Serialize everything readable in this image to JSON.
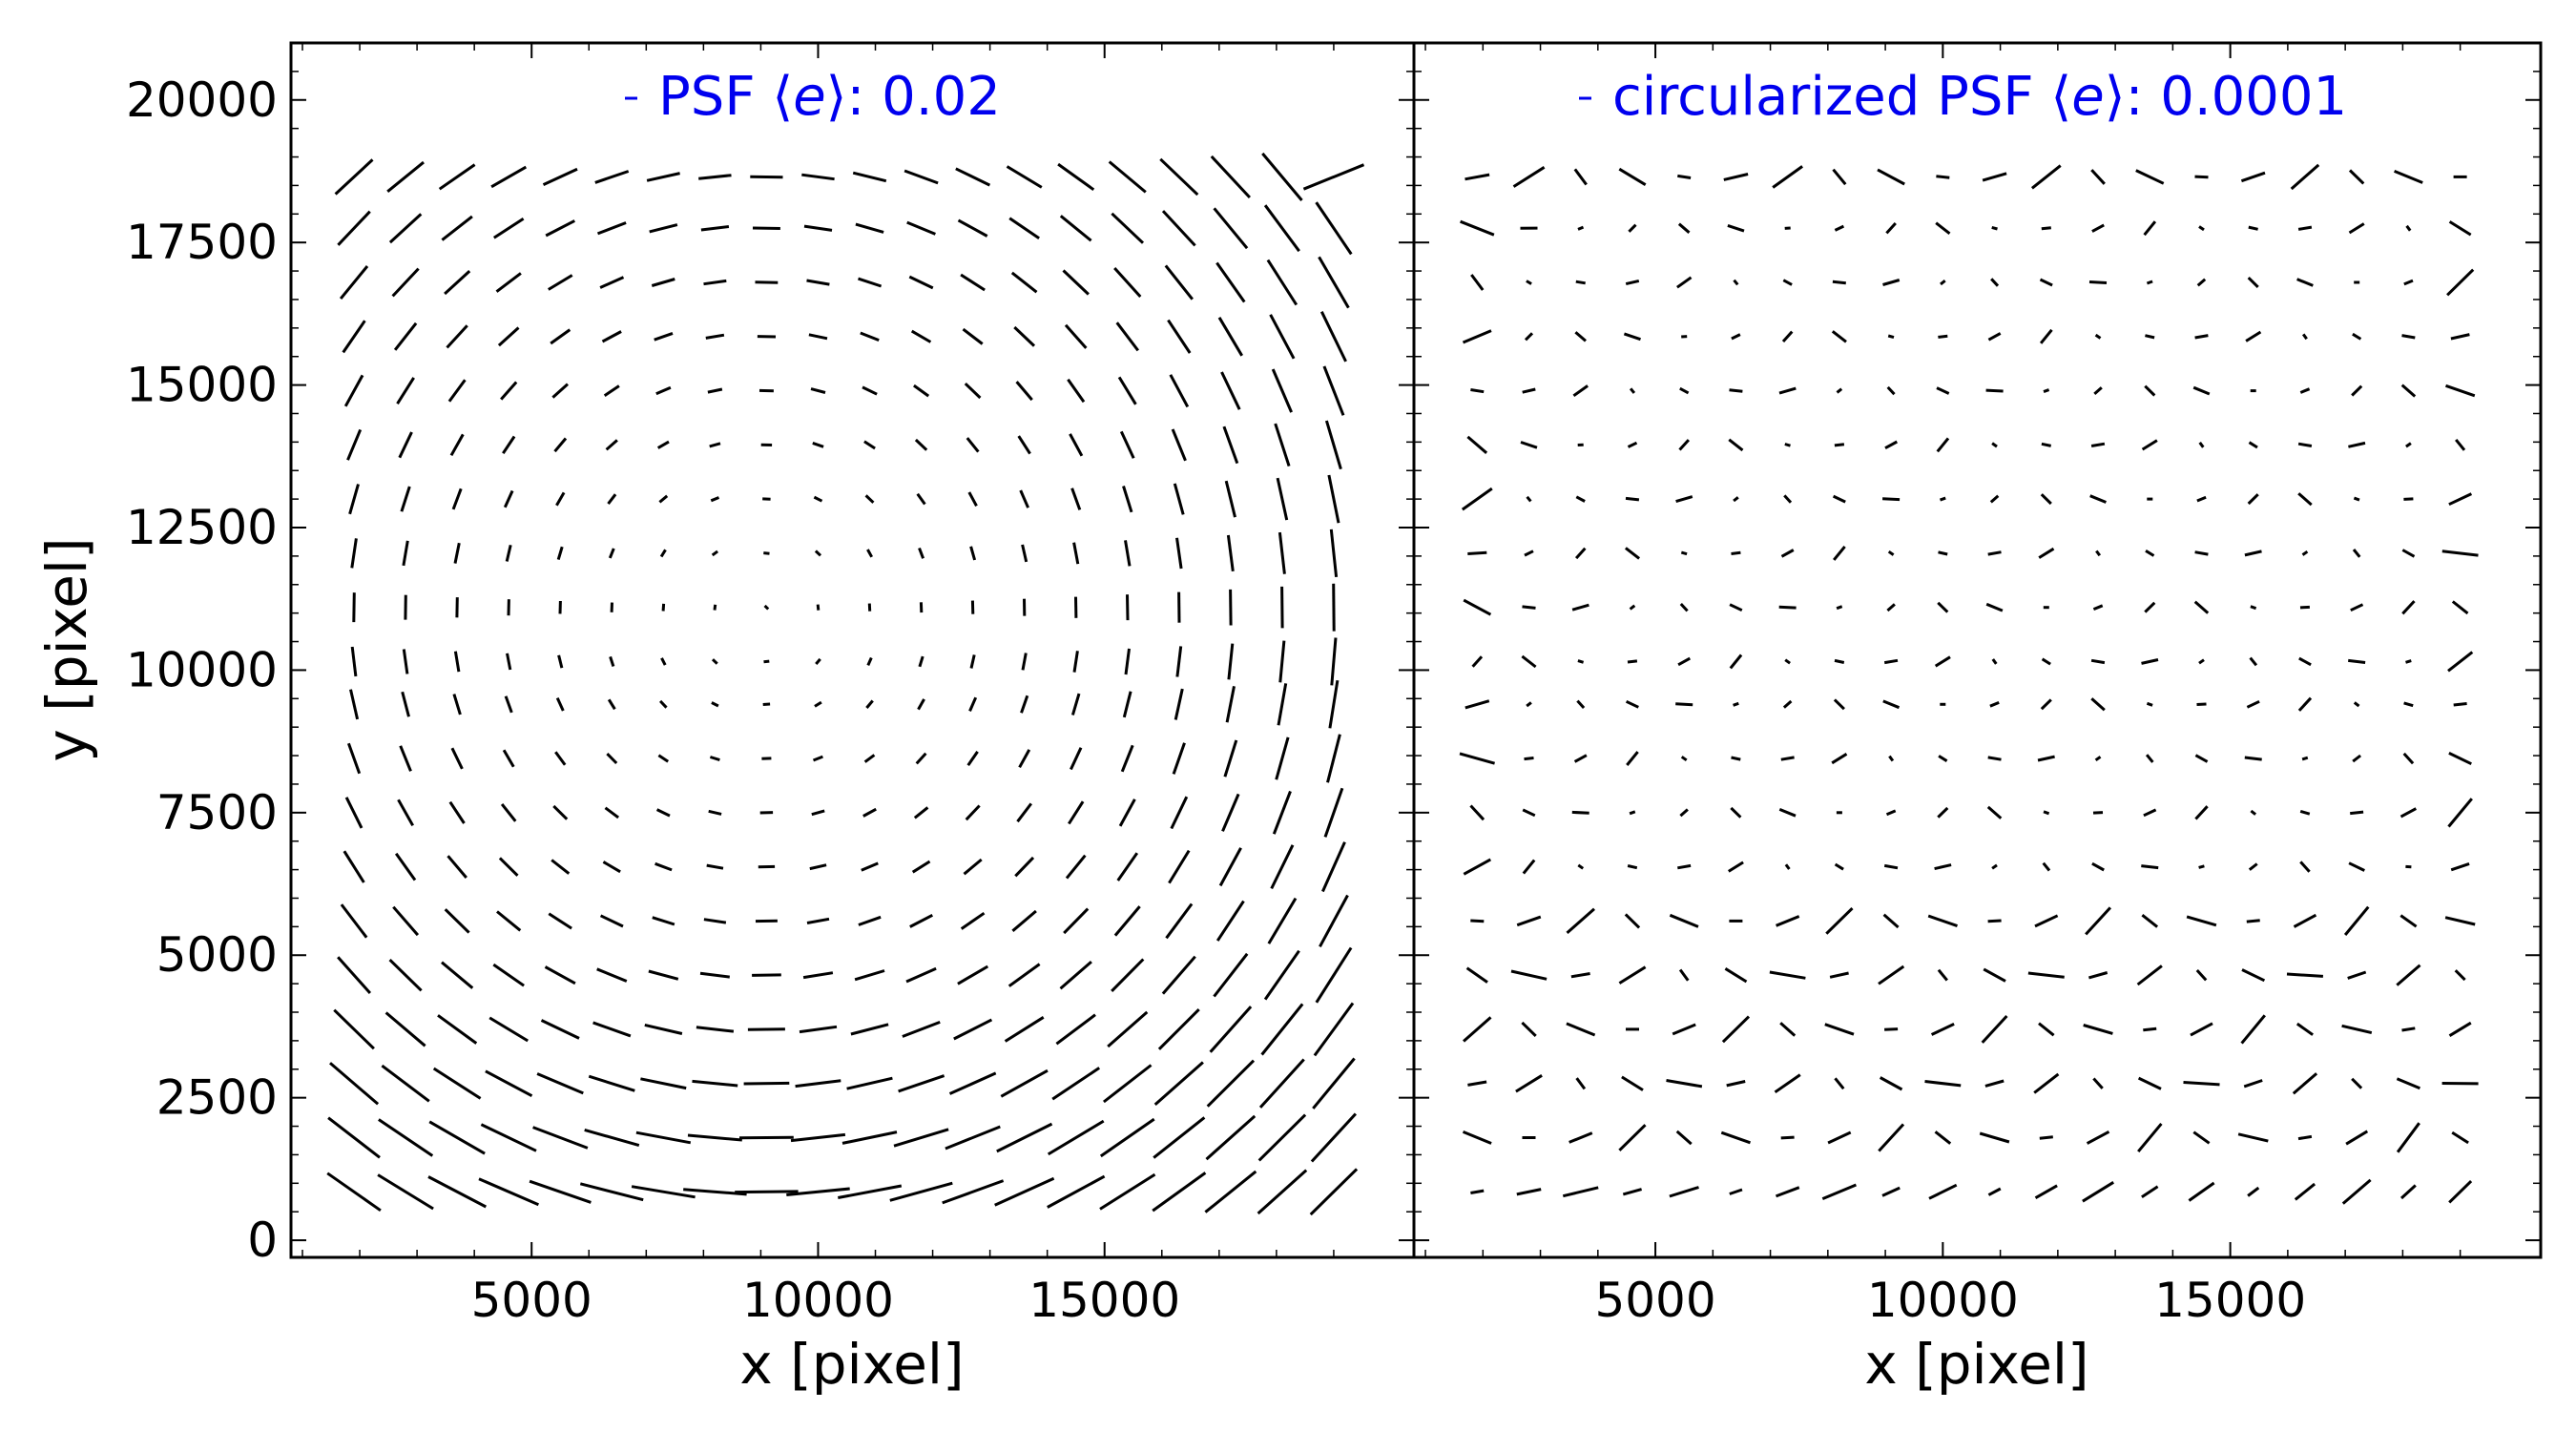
{
  "figure": {
    "ylabel": "y [pixel]",
    "colors": {
      "whisker": "#000000",
      "legend_text": "#0000ee",
      "axes": "#000000"
    }
  },
  "chart_data": [
    {
      "type": "whisker",
      "title": "",
      "legend_label": "PSF",
      "legend_stat": "0.02",
      "xlabel": "x [pixel]",
      "ylabel": "y [pixel]",
      "xlim": [
        800,
        20400
      ],
      "ylim": [
        -300,
        21000
      ],
      "xticks": [
        5000,
        10000,
        15000
      ],
      "yticks": [
        0,
        2500,
        5000,
        7500,
        10000,
        12500,
        15000,
        17500,
        20000
      ],
      "grid_x": [
        1900,
        2800,
        3700,
        4600,
        5500,
        6400,
        7300,
        8200,
        9100,
        10000,
        10900,
        11800,
        12700,
        13600,
        14500,
        15400,
        16300,
        17200,
        18100,
        19000
      ],
      "grid_y": [
        850,
        1800,
        2750,
        3700,
        4650,
        5600,
        6550,
        7500,
        8450,
        9400,
        10150,
        11100,
        12050,
        13000,
        13950,
        14900,
        15850,
        16800,
        17750,
        18650
      ],
      "whisker_scale_e": 0.02,
      "notable_whiskers": [
        {
          "x": 19000,
          "y": 18650,
          "e": 0.05,
          "theta_deg": 22
        }
      ]
    },
    {
      "type": "whisker",
      "title": "",
      "legend_label": "circularized PSF",
      "legend_stat": "0.0001",
      "xlabel": "x [pixel]",
      "ylabel": "",
      "xlim": [
        800,
        20400
      ],
      "ylim": [
        -300,
        21000
      ],
      "xticks": [
        5000,
        10000,
        15000
      ],
      "yticks": [
        0,
        2500,
        5000,
        7500,
        10000,
        12500,
        15000,
        17500,
        20000
      ],
      "grid_x": [
        1900,
        2800,
        3700,
        4600,
        5500,
        6400,
        7300,
        8200,
        9100,
        10000,
        10900,
        11800,
        12700,
        13600,
        14500,
        15400,
        16300,
        17200,
        18100,
        19000
      ],
      "grid_y": [
        850,
        1800,
        2750,
        3700,
        4650,
        5600,
        6550,
        7500,
        8450,
        9400,
        10150,
        11100,
        12050,
        13000,
        13950,
        14900,
        15850,
        16800,
        17750,
        18650
      ],
      "whisker_scale_e": 0.0001
    }
  ]
}
